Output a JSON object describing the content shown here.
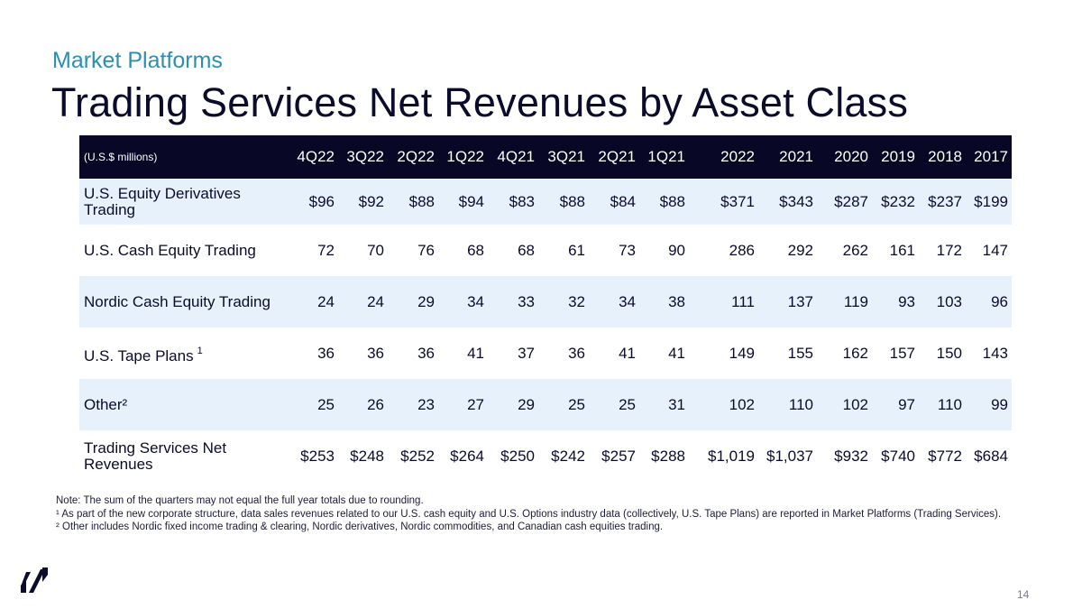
{
  "header": {
    "subtitle": "Market Platforms",
    "title": "Trading Services Net Revenues by Asset Class"
  },
  "table": {
    "unit_label": "(U.S.$ millions)",
    "columns": [
      "4Q22",
      "3Q22",
      "2Q22",
      "1Q22",
      "4Q21",
      "3Q21",
      "2Q21",
      "1Q21",
      "2022",
      "2021",
      "2020",
      "2019",
      "2018",
      "2017"
    ],
    "rows": [
      {
        "label": "U.S. Equity Derivatives Trading",
        "sup": "",
        "values": [
          "$96",
          "$92",
          "$88",
          "$94",
          "$83",
          "$88",
          "$84",
          "$88",
          "$371",
          "$343",
          "$287",
          "$232",
          "$237",
          "$199"
        ]
      },
      {
        "label": "U.S. Cash Equity Trading",
        "sup": "",
        "values": [
          "72",
          "70",
          "76",
          "68",
          "68",
          "61",
          "73",
          "90",
          "286",
          "292",
          "262",
          "161",
          "172",
          "147"
        ]
      },
      {
        "label": "Nordic Cash Equity Trading",
        "sup": "",
        "values": [
          "24",
          "24",
          "29",
          "34",
          "33",
          "32",
          "34",
          "38",
          "111",
          "137",
          "119",
          "93",
          "103",
          "96"
        ]
      },
      {
        "label": "U.S. Tape Plans",
        "sup": "1",
        "values": [
          "36",
          "36",
          "36",
          "41",
          "37",
          "36",
          "41",
          "41",
          "149",
          "155",
          "162",
          "157",
          "150",
          "143"
        ]
      },
      {
        "label": "Other²",
        "sup": "",
        "values": [
          "25",
          "26",
          "23",
          "27",
          "29",
          "25",
          "25",
          "31",
          "102",
          "110",
          "102",
          "97",
          "110",
          "99"
        ]
      },
      {
        "label": "Trading Services Net Revenues",
        "sup": "",
        "values": [
          "$253",
          "$248",
          "$252",
          "$264",
          "$250",
          "$242",
          "$257",
          "$288",
          "$1,019",
          "$1,037",
          "$932",
          "$740",
          "$772",
          "$684"
        ]
      }
    ]
  },
  "notes": [
    "Note: The sum of the quarters may not equal the full year totals due to rounding.",
    "¹ As part of the new corporate structure, data sales revenues related to our U.S. cash equity and U.S. Options industry data (collectively, U.S. Tape Plans) are reported in Market Platforms (Trading Services).",
    "² Other includes Nordic fixed income trading & clearing, Nordic derivatives, Nordic commodities, and Canadian cash equities trading."
  ],
  "footer": {
    "page_number": "14",
    "logo": "nasdaq-logo-icon"
  },
  "colors": {
    "header_bg": "#080826",
    "row_shade": "#e6f1fc",
    "subtitle": "#2a8fb5",
    "text": "#0b0b2b"
  }
}
